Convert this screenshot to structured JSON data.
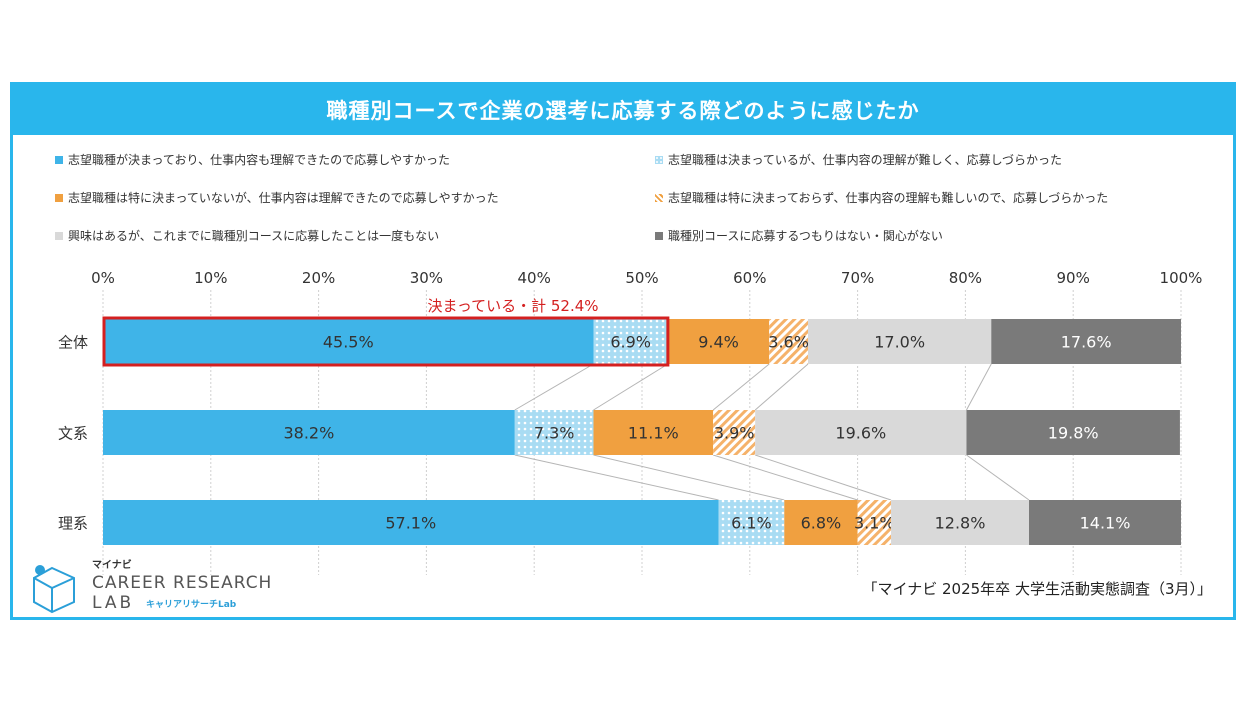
{
  "title": "職種別コースで企業の選考に応募する際どのように感じたか",
  "legend": [
    {
      "label": "志望職種が決まっており、仕事内容も理解できたので応募しやすかった",
      "color": "#3fb4e8",
      "pattern": "solid"
    },
    {
      "label": "志望職種は決まっているが、仕事内容の理解が難しく、応募しづらかった",
      "color": "#a9dcf3",
      "pattern": "dots"
    },
    {
      "label": "志望職種は特に決まっていないが、仕事内容は理解できたので応募しやすかった",
      "color": "#f0a040",
      "pattern": "solid"
    },
    {
      "label": "志望職種は特に決まっておらず、仕事内容の理解も難しいので、応募しづらかった",
      "color": "#f5c08a",
      "pattern": "stripes"
    },
    {
      "label": "興味はあるが、これまでに職種別コースに応募したことは一度もない",
      "color": "#d9d9d9",
      "pattern": "solid"
    },
    {
      "label": "職種別コースに応募するつもりはない・関心がない",
      "color": "#7a7a7a",
      "pattern": "solid"
    }
  ],
  "chart_data": {
    "type": "bar",
    "orientation": "horizontal-stacked-100",
    "xlim": [
      0,
      100
    ],
    "x_ticks": [
      "0%",
      "10%",
      "20%",
      "30%",
      "40%",
      "50%",
      "60%",
      "70%",
      "80%",
      "90%",
      "100%"
    ],
    "categories": [
      "全体",
      "文系",
      "理系"
    ],
    "series": [
      {
        "name": "志望職種が決まっており、仕事内容も理解できたので応募しやすかった",
        "values": [
          45.5,
          38.2,
          57.1
        ],
        "labels": [
          "45.5%",
          "38.2%",
          "57.1%"
        ]
      },
      {
        "name": "志望職種は決まっているが、仕事内容の理解が難しく、応募しづらかった",
        "values": [
          6.9,
          7.3,
          6.1
        ],
        "labels": [
          "6.9%",
          "7.3%",
          "6.1%"
        ]
      },
      {
        "name": "志望職種は特に決まっていないが、仕事内容は理解できたので応募しやすかった",
        "values": [
          9.4,
          11.1,
          6.8
        ],
        "labels": [
          "9.4%",
          "11.1%",
          "6.8%"
        ]
      },
      {
        "name": "志望職種は特に決まっておらず、仕事内容の理解も難しいので、応募しづらかった",
        "values": [
          3.6,
          3.9,
          3.1
        ],
        "labels": [
          "3.6%",
          "3.9%",
          "3.1%"
        ]
      },
      {
        "name": "興味はあるが、これまでに職種別コースに応募したことは一度もない",
        "values": [
          17.0,
          19.6,
          12.8
        ],
        "labels": [
          "17.0%",
          "19.6%",
          "12.8%"
        ]
      },
      {
        "name": "職種別コースに応募するつもりはない・関心がない",
        "values": [
          17.6,
          19.8,
          14.1
        ],
        "labels": [
          "17.6%",
          "19.8%",
          "14.1%"
        ]
      }
    ],
    "annotation": {
      "text": "決まっている・計 52.4%",
      "category": "全体",
      "value": 52.4,
      "color": "#d42020"
    }
  },
  "logo": {
    "top": "マイナビ",
    "line1": "CAREER RESEARCH",
    "line2": "LAB",
    "sub": "キャリアリサーチLab"
  },
  "source": "「マイナビ 2025年卒 大学生活動実態調査（3月）」"
}
